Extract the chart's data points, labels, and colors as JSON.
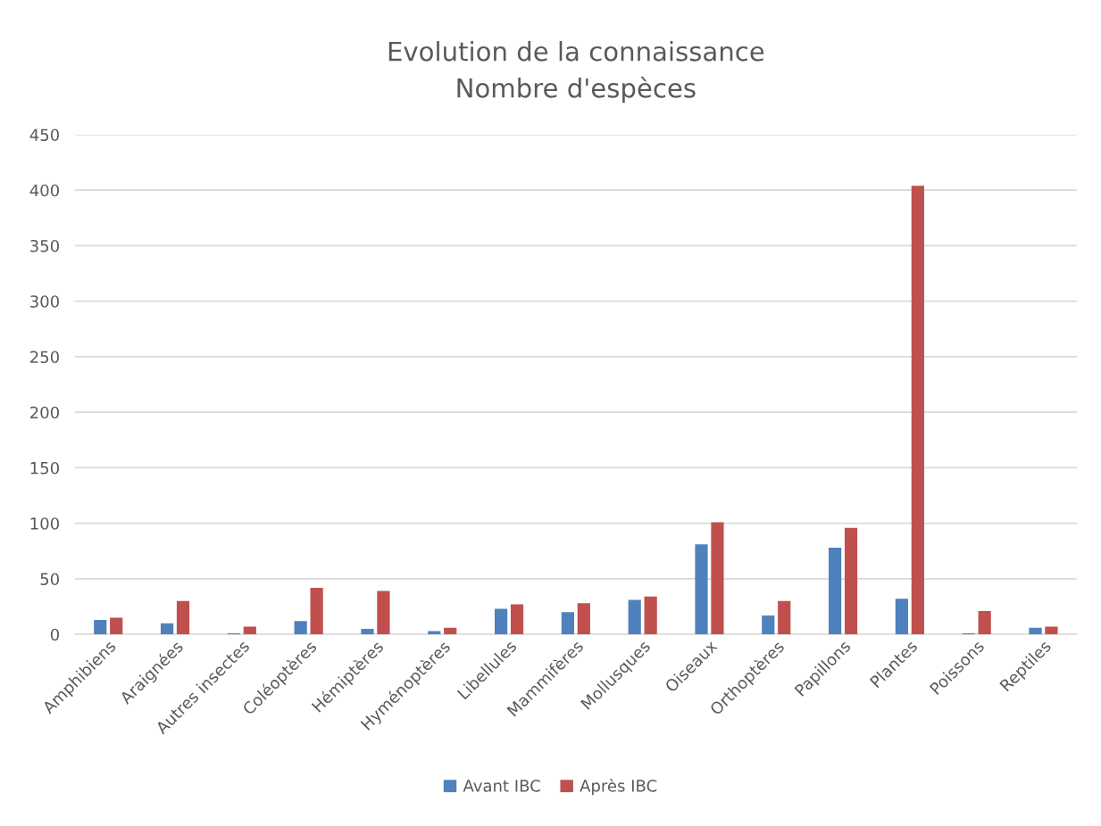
{
  "chart_data": {
    "type": "bar",
    "title": "Evolution de la connaissance\nNombre d'espèces",
    "categories": [
      "Amphibiens",
      "Araignées",
      "Autres insectes",
      "Coléoptères",
      "Hémiptères",
      "Hyménoptères",
      "Libellules",
      "Mammifères",
      "Mollusques",
      "Oiseaux",
      "Orthoptères",
      "Papillons",
      "Plantes",
      "Poissons",
      "Reptiles"
    ],
    "series": [
      {
        "name": "Avant IBC",
        "color": "#4f81bd",
        "values": [
          13,
          10,
          1,
          12,
          5,
          3,
          23,
          20,
          31,
          81,
          17,
          78,
          32,
          1,
          6
        ]
      },
      {
        "name": "Après IBC",
        "color": "#c0504d",
        "values": [
          15,
          30,
          7,
          42,
          39,
          6,
          27,
          28,
          34,
          101,
          30,
          96,
          404,
          21,
          7
        ]
      }
    ],
    "ylim": [
      0,
      450
    ],
    "yticks": [
      0,
      50,
      100,
      150,
      200,
      250,
      300,
      350,
      400,
      450
    ],
    "grid": "y",
    "legend": "bottom"
  }
}
